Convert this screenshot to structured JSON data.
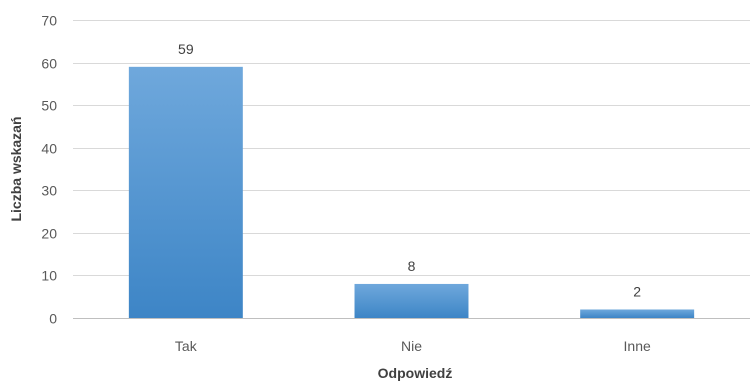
{
  "chart_data": {
    "type": "bar",
    "title": "",
    "xlabel": "Odpowiedź",
    "ylabel": "Liczba wskazań",
    "categories": [
      "Tak",
      "Nie",
      "Inne"
    ],
    "values": [
      59,
      8,
      2
    ],
    "data_labels": [
      "59",
      "8",
      "2"
    ],
    "ylim": [
      0,
      70
    ],
    "yticks": [
      0,
      10,
      20,
      30,
      40,
      50,
      60,
      70
    ],
    "grid": true,
    "legend": "none",
    "colors": {
      "bar_top": "#6fa8dc",
      "bar_bottom": "#3d85c6",
      "grid": "#d9d9d9",
      "axis": "#bfbfbf"
    }
  }
}
